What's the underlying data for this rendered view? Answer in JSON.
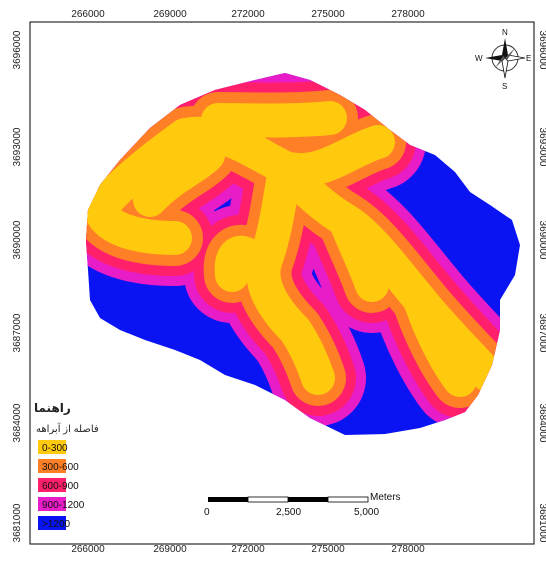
{
  "map": {
    "x_ticks": [
      "266000",
      "269000",
      "272000",
      "275000",
      "278000"
    ],
    "y_ticks": [
      "3696000",
      "3693000",
      "3690000",
      "3687000",
      "3684000",
      "3681000"
    ]
  },
  "legend": {
    "title": "راهنما",
    "subtitle": "فاصله از آبراهه",
    "items": [
      {
        "label": "0-300",
        "color": "#FFC90E"
      },
      {
        "label": "300-600",
        "color": "#FF7F27"
      },
      {
        "label": "600-900",
        "color": "#FF1F6A"
      },
      {
        "label": "900-1200",
        "color": "#E81DC8"
      },
      {
        "label": ">1200",
        "color": "#0A14F2"
      }
    ]
  },
  "scale_bar": {
    "unit": "Meters",
    "labels": [
      "0",
      "2,500",
      "5,000"
    ]
  },
  "north_arrow": {
    "icon": "compass-rose-icon",
    "n": "N",
    "s": "S",
    "e": "E",
    "w": "W"
  },
  "colors": {
    "band_0_300": "#FFC90E",
    "band_300_600": "#FF7F27",
    "band_600_900": "#FF1F6A",
    "band_900_1200": "#E81DC8",
    "band_over_1200": "#0A14F2"
  }
}
